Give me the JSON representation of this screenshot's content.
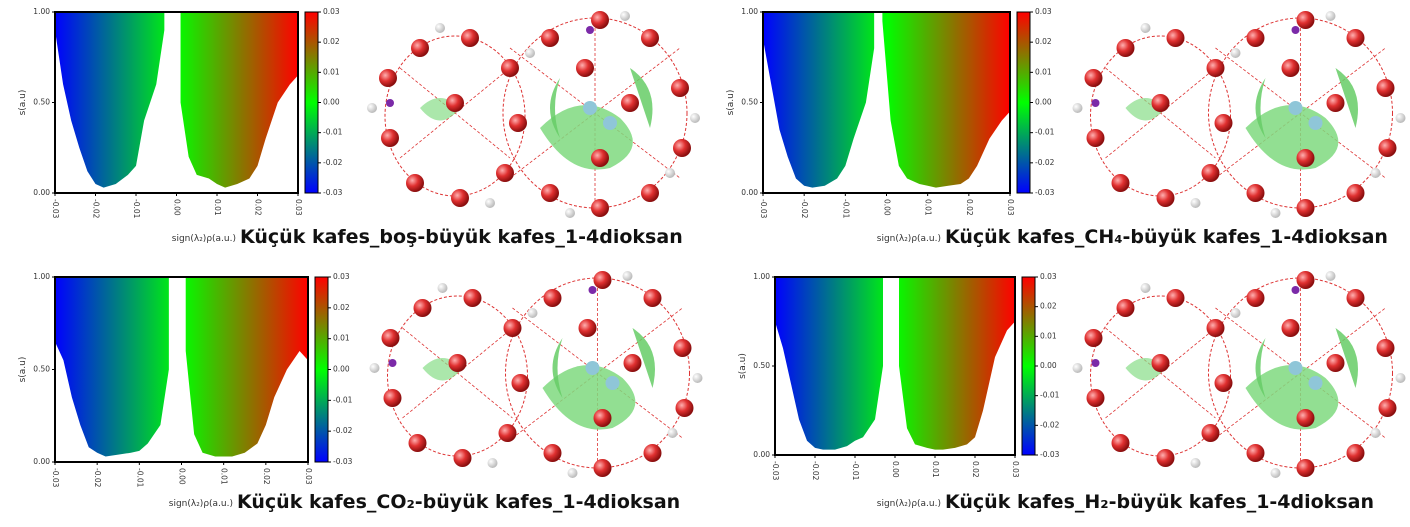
{
  "chart_data": [
    {
      "type": "area",
      "title": "Küçük kafes_boş-büyük kafes_1-4dioksan",
      "x_label": "sign(λ₂)ρ(a.u.)",
      "y_label": "s(a.u)",
      "x": [
        -0.03,
        -0.028,
        -0.026,
        -0.024,
        -0.022,
        -0.02,
        -0.018,
        -0.015,
        -0.012,
        -0.01,
        -0.008,
        -0.005,
        -0.003,
        -0.002,
        -0.001,
        0.001,
        0.003,
        0.005,
        0.008,
        0.01,
        0.012,
        0.015,
        0.018,
        0.02,
        0.022,
        0.025,
        0.028,
        0.03
      ],
      "values": [
        0.9,
        0.6,
        0.4,
        0.25,
        0.12,
        0.05,
        0.03,
        0.05,
        0.1,
        0.15,
        0.4,
        0.6,
        0.9,
        null,
        null,
        0.5,
        0.2,
        0.1,
        0.08,
        0.05,
        0.03,
        0.05,
        0.08,
        0.15,
        0.3,
        0.5,
        0.6,
        0.65
      ],
      "xlim": [
        -0.03,
        0.03
      ],
      "ylim": [
        0,
        1
      ],
      "xticks": [
        {
          "value": -0.03,
          "label": "-0.03"
        },
        {
          "value": -0.02,
          "label": "-0.02"
        },
        {
          "value": -0.01,
          "label": "-0.01"
        },
        {
          "value": 0,
          "label": "0.00"
        },
        {
          "value": 0.01,
          "label": "0.01"
        },
        {
          "value": 0.02,
          "label": "0.02"
        },
        {
          "value": 0.03,
          "label": "0.03"
        }
      ],
      "yticks": [
        {
          "value": 0,
          "label": "0.00"
        },
        {
          "value": 0.5,
          "label": "0.50"
        },
        {
          "value": 1,
          "label": "1.00"
        }
      ],
      "colors": [
        "#0000ff",
        "#00ff00",
        "#ff0000"
      ],
      "clim": [
        -0.03,
        0.03
      ],
      "cticks": [
        {
          "value": -0.03,
          "label": "-0.03"
        },
        {
          "value": -0.02,
          "label": "-0.02"
        },
        {
          "value": -0.01,
          "label": "-0.01"
        },
        {
          "value": 0,
          "label": "0.00"
        },
        {
          "value": 0.01,
          "label": "0.01"
        },
        {
          "value": 0.02,
          "label": "0.02"
        },
        {
          "value": 0.03,
          "label": "0.03"
        }
      ]
    },
    {
      "type": "area",
      "title": "Küçük kafes_CH₄-büyük kafes_1-4dioksan",
      "x_label": "sign(λ₂)ρ(a.u.)",
      "y_label": "s(a.u)",
      "x": [
        -0.03,
        -0.028,
        -0.026,
        -0.024,
        -0.022,
        -0.02,
        -0.018,
        -0.015,
        -0.012,
        -0.01,
        -0.008,
        -0.005,
        -0.003,
        -0.002,
        -0.001,
        0.001,
        0.003,
        0.005,
        0.008,
        0.01,
        0.012,
        0.015,
        0.018,
        0.02,
        0.022,
        0.025,
        0.028,
        0.03
      ],
      "values": [
        0.85,
        0.6,
        0.35,
        0.2,
        0.08,
        0.04,
        0.03,
        0.04,
        0.08,
        0.15,
        0.3,
        0.5,
        0.8,
        null,
        0.95,
        0.4,
        0.15,
        0.08,
        0.05,
        0.04,
        0.03,
        0.04,
        0.05,
        0.08,
        0.15,
        0.3,
        0.4,
        0.45
      ],
      "xlim": [
        -0.03,
        0.03
      ],
      "ylim": [
        0,
        1
      ],
      "xticks": [
        {
          "value": -0.03,
          "label": "-0.03"
        },
        {
          "value": -0.02,
          "label": "-0.02"
        },
        {
          "value": -0.01,
          "label": "-0.01"
        },
        {
          "value": 0,
          "label": "0.00"
        },
        {
          "value": 0.01,
          "label": "0.01"
        },
        {
          "value": 0.02,
          "label": "0.02"
        },
        {
          "value": 0.03,
          "label": "0.03"
        }
      ],
      "yticks": [
        {
          "value": 0,
          "label": "0.00"
        },
        {
          "value": 0.5,
          "label": "0.50"
        },
        {
          "value": 1,
          "label": "1.00"
        }
      ],
      "colors": [
        "#0000ff",
        "#00ff00",
        "#ff0000"
      ],
      "clim": [
        -0.03,
        0.03
      ],
      "cticks": [
        {
          "value": -0.03,
          "label": "-0.03"
        },
        {
          "value": -0.02,
          "label": "-0.02"
        },
        {
          "value": -0.01,
          "label": "-0.01"
        },
        {
          "value": 0,
          "label": "0.00"
        },
        {
          "value": 0.01,
          "label": "0.01"
        },
        {
          "value": 0.02,
          "label": "0.02"
        },
        {
          "value": 0.03,
          "label": "0.03"
        }
      ]
    },
    {
      "type": "area",
      "title": "Küçük kafes_CO₂-büyük kafes_1-4dioksan",
      "x_label": "sign(λ₂)ρ(a.u.)",
      "y_label": "s(a.u)",
      "x": [
        -0.03,
        -0.028,
        -0.026,
        -0.024,
        -0.022,
        -0.02,
        -0.018,
        -0.015,
        -0.012,
        -0.01,
        -0.008,
        -0.005,
        -0.003,
        -0.002,
        -0.001,
        0.001,
        0.003,
        0.005,
        0.008,
        0.01,
        0.012,
        0.015,
        0.018,
        0.02,
        0.022,
        0.025,
        0.028,
        0.03
      ],
      "values": [
        0.65,
        0.55,
        0.35,
        0.2,
        0.08,
        0.05,
        0.03,
        0.04,
        0.05,
        0.06,
        0.1,
        0.2,
        0.5,
        null,
        null,
        0.6,
        0.15,
        0.05,
        0.03,
        0.03,
        0.03,
        0.05,
        0.1,
        0.2,
        0.35,
        0.5,
        0.6,
        0.55
      ],
      "xlim": [
        -0.03,
        0.03
      ],
      "ylim": [
        0,
        1
      ],
      "xticks": [
        {
          "value": -0.03,
          "label": "-0.03"
        },
        {
          "value": -0.02,
          "label": "-0.02"
        },
        {
          "value": -0.01,
          "label": "-0.01"
        },
        {
          "value": 0,
          "label": "0.00"
        },
        {
          "value": 0.01,
          "label": "0.01"
        },
        {
          "value": 0.02,
          "label": "0.02"
        },
        {
          "value": 0.03,
          "label": "0.03"
        }
      ],
      "yticks": [
        {
          "value": 0,
          "label": "0.00"
        },
        {
          "value": 0.5,
          "label": "0.50"
        },
        {
          "value": 1,
          "label": "1.00"
        }
      ],
      "colors": [
        "#0000ff",
        "#00ff00",
        "#ff0000"
      ],
      "clim": [
        -0.03,
        0.03
      ],
      "cticks": [
        {
          "value": -0.03,
          "label": "-0.03"
        },
        {
          "value": -0.02,
          "label": "-0.02"
        },
        {
          "value": -0.01,
          "label": "-0.01"
        },
        {
          "value": 0,
          "label": "0.00"
        },
        {
          "value": 0.01,
          "label": "0.01"
        },
        {
          "value": 0.02,
          "label": "0.02"
        },
        {
          "value": 0.03,
          "label": "0.03"
        }
      ]
    },
    {
      "type": "area",
      "title": "Küçük kafes_H₂-büyük kafes_1-4dioksan",
      "x_label": "sign(λ₂)ρ(a.u.)",
      "y_label": "s(a.u)",
      "x": [
        -0.03,
        -0.028,
        -0.026,
        -0.024,
        -0.022,
        -0.02,
        -0.018,
        -0.015,
        -0.012,
        -0.01,
        -0.008,
        -0.005,
        -0.003,
        -0.002,
        -0.001,
        0.001,
        0.003,
        0.005,
        0.008,
        0.01,
        0.012,
        0.015,
        0.018,
        0.02,
        0.022,
        0.025,
        0.028,
        0.03
      ],
      "values": [
        0.75,
        0.6,
        0.4,
        0.2,
        0.08,
        0.04,
        0.03,
        0.03,
        0.05,
        0.08,
        0.1,
        0.2,
        0.5,
        null,
        null,
        0.5,
        0.15,
        0.06,
        0.04,
        0.03,
        0.03,
        0.04,
        0.06,
        0.1,
        0.25,
        0.55,
        0.7,
        0.75
      ],
      "xlim": [
        -0.03,
        0.03
      ],
      "ylim": [
        0,
        1
      ],
      "xticks": [
        {
          "value": -0.03,
          "label": "-0.03"
        },
        {
          "value": -0.02,
          "label": "-0.02"
        },
        {
          "value": -0.01,
          "label": "-0.01"
        },
        {
          "value": 0,
          "label": "0.00"
        },
        {
          "value": 0.01,
          "label": "0.01"
        },
        {
          "value": 0.02,
          "label": "0.02"
        },
        {
          "value": 0.03,
          "label": "0.03"
        }
      ],
      "yticks": [
        {
          "value": 0,
          "label": "0.00"
        },
        {
          "value": 0.5,
          "label": "0.50"
        },
        {
          "value": 1,
          "label": "1.00"
        }
      ],
      "colors": [
        "#0000ff",
        "#00ff00",
        "#ff0000"
      ],
      "clim": [
        -0.03,
        0.03
      ],
      "cticks": [
        {
          "value": -0.03,
          "label": "-0.03"
        },
        {
          "value": -0.02,
          "label": "-0.02"
        },
        {
          "value": -0.01,
          "label": "-0.01"
        },
        {
          "value": 0,
          "label": "0.00"
        },
        {
          "value": 0.01,
          "label": "0.01"
        },
        {
          "value": 0.02,
          "label": "0.02"
        },
        {
          "value": 0.03,
          "label": "0.03"
        }
      ]
    }
  ]
}
